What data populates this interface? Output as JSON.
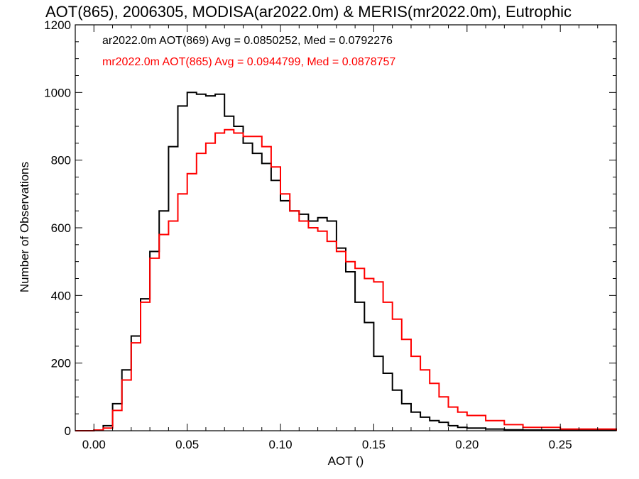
{
  "chart_data": {
    "type": "line",
    "subtype": "step-histogram",
    "title": "AOT(865), 2006305, MODISA(ar2022.0m) & MERIS(mr2022.0m), Eutrophic",
    "xlabel": "AOT ()",
    "ylabel": "Number of Observations",
    "xlim": [
      -0.01,
      0.28
    ],
    "ylim": [
      0,
      1200
    ],
    "xticks": [
      0.0,
      0.05,
      0.1,
      0.15,
      0.2,
      0.25
    ],
    "xtick_labels": [
      "0.00",
      "0.05",
      "0.10",
      "0.15",
      "0.20",
      "0.25"
    ],
    "yticks": [
      0,
      200,
      400,
      600,
      800,
      1000,
      1200
    ],
    "ytick_labels": [
      "0",
      "200",
      "400",
      "600",
      "800",
      "1000",
      "1200"
    ],
    "grid": false,
    "legend_position": "top-left",
    "series": [
      {
        "name": "ar2022.0m AOT(869) Avg = 0.0850252, Med = 0.0792276",
        "color": "#000000",
        "x": [
          -0.01,
          0.0,
          0.005,
          0.01,
          0.015,
          0.02,
          0.025,
          0.03,
          0.035,
          0.04,
          0.045,
          0.05,
          0.055,
          0.06,
          0.065,
          0.07,
          0.075,
          0.08,
          0.085,
          0.09,
          0.095,
          0.1,
          0.105,
          0.11,
          0.115,
          0.12,
          0.125,
          0.13,
          0.135,
          0.14,
          0.145,
          0.15,
          0.155,
          0.16,
          0.165,
          0.17,
          0.175,
          0.18,
          0.185,
          0.19,
          0.195,
          0.2,
          0.21,
          0.22,
          0.23,
          0.25,
          0.28
        ],
        "y": [
          0,
          2,
          15,
          80,
          180,
          280,
          390,
          530,
          650,
          840,
          960,
          1000,
          995,
          990,
          995,
          930,
          900,
          850,
          820,
          790,
          740,
          680,
          650,
          640,
          620,
          630,
          620,
          540,
          470,
          380,
          320,
          220,
          170,
          120,
          80,
          55,
          40,
          30,
          25,
          15,
          10,
          8,
          5,
          3,
          2,
          1,
          0
        ]
      },
      {
        "name": "mr2022.0m AOT(865) Avg = 0.0944799, Med = 0.0878757",
        "color": "#ff0000",
        "x": [
          -0.01,
          0.0,
          0.005,
          0.01,
          0.015,
          0.02,
          0.025,
          0.03,
          0.035,
          0.04,
          0.045,
          0.05,
          0.055,
          0.06,
          0.065,
          0.07,
          0.075,
          0.08,
          0.085,
          0.09,
          0.095,
          0.1,
          0.105,
          0.11,
          0.115,
          0.12,
          0.125,
          0.13,
          0.135,
          0.14,
          0.145,
          0.15,
          0.155,
          0.16,
          0.165,
          0.17,
          0.175,
          0.18,
          0.185,
          0.19,
          0.195,
          0.2,
          0.21,
          0.22,
          0.23,
          0.25,
          0.28
        ],
        "y": [
          0,
          2,
          8,
          60,
          150,
          260,
          380,
          510,
          580,
          620,
          700,
          760,
          820,
          850,
          880,
          890,
          880,
          870,
          870,
          840,
          780,
          700,
          650,
          620,
          600,
          590,
          560,
          530,
          500,
          480,
          450,
          440,
          380,
          330,
          270,
          220,
          180,
          140,
          100,
          70,
          55,
          45,
          30,
          18,
          10,
          5,
          0
        ]
      }
    ]
  }
}
